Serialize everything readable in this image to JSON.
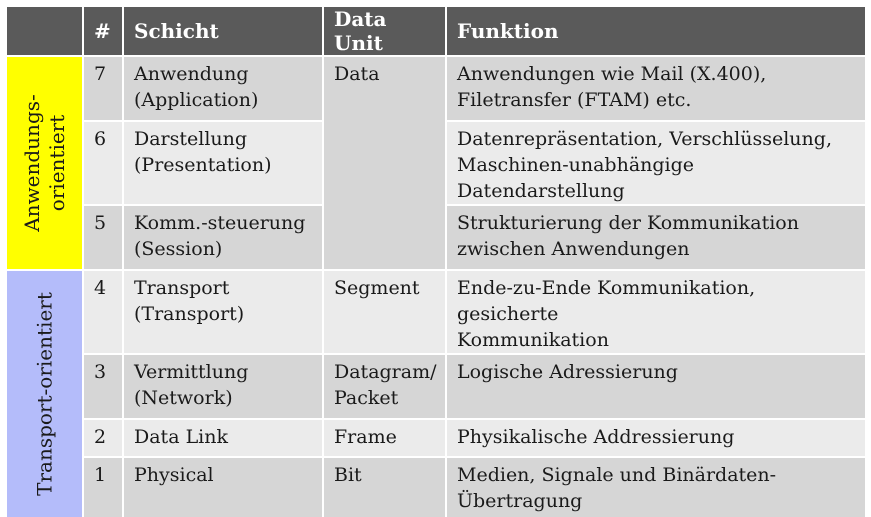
{
  "header": {
    "num": "#",
    "schicht": "Schicht",
    "data_unit": "Data Unit",
    "funktion": "Funktion"
  },
  "groups": {
    "app_line1": "Anwendungs-",
    "app_line2": "orientiert",
    "transport": "Transport-orientiert"
  },
  "rows": [
    {
      "num": "7",
      "layer1": "Anwendung",
      "layer2": "(Application)",
      "unit1": "Data",
      "unit2": "",
      "f1": "Anwendungen wie Mail (X.400),",
      "f2": "Filetransfer (FTAM) etc."
    },
    {
      "num": "6",
      "layer1": "Darstellung",
      "layer2": "(Presentation)",
      "unit1": "",
      "unit2": "",
      "f1": "Datenrepräsentation, Verschlüsselung,",
      "f2": "Maschinen-unabhängige Datendarstellung"
    },
    {
      "num": "5",
      "layer1": "Komm.-steuerung",
      "layer2": "(Session)",
      "unit1": "",
      "unit2": "",
      "f1": "Strukturierung der Kommunikation",
      "f2": "zwischen Anwendungen"
    },
    {
      "num": "4",
      "layer1": "Transport",
      "layer2": "(Transport)",
      "unit1": "Segment",
      "unit2": "",
      "f1": "Ende-zu-Ende Kommunikation, gesicherte",
      "f2": "Kommunikation"
    },
    {
      "num": "3",
      "layer1": "Vermittlung",
      "layer2": "(Network)",
      "unit1": "Datagram/",
      "unit2": "Packet",
      "f1": "Logische Adressierung",
      "f2": ""
    },
    {
      "num": "2",
      "layer1": "Data Link",
      "layer2": "",
      "unit1": "Frame",
      "unit2": "",
      "f1": "Physikalische Addressierung",
      "f2": ""
    },
    {
      "num": "1",
      "layer1": "Physical",
      "layer2": "",
      "unit1": "Bit",
      "unit2": "",
      "f1": "Medien, Signale und Binärdaten-",
      "f2": "Übertragung"
    }
  ],
  "colors": {
    "header_bg": "#5a5a5a",
    "row_dark": "#d6d6d6",
    "row_light": "#ebebeb",
    "app_group": "#ffff00",
    "transport_group": "#b4bcfa"
  }
}
